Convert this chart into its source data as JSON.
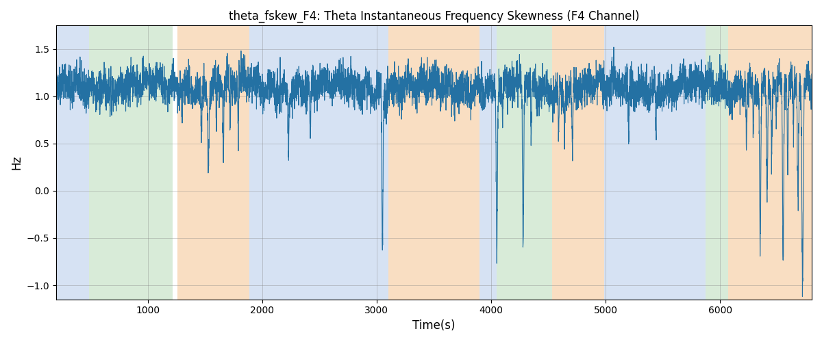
{
  "title": "theta_fskew_F4: Theta Instantaneous Frequency Skewness (F4 Channel)",
  "xlabel": "Time(s)",
  "ylabel": "Hz",
  "xlim": [
    200,
    6800
  ],
  "ylim": [
    -1.15,
    1.75
  ],
  "line_color": "#2471a3",
  "line_width": 0.8,
  "background_regions": [
    {
      "start": 200,
      "end": 490,
      "color": "#aec6e8",
      "alpha": 0.5
    },
    {
      "start": 490,
      "end": 1220,
      "color": "#b2d8b2",
      "alpha": 0.5
    },
    {
      "start": 1220,
      "end": 1260,
      "color": "#ffffff",
      "alpha": 0.0
    },
    {
      "start": 1260,
      "end": 1890,
      "color": "#f5c89a",
      "alpha": 0.6
    },
    {
      "start": 1890,
      "end": 2130,
      "color": "#aec6e8",
      "alpha": 0.5
    },
    {
      "start": 2130,
      "end": 3100,
      "color": "#aec6e8",
      "alpha": 0.5
    },
    {
      "start": 3100,
      "end": 3900,
      "color": "#f5c89a",
      "alpha": 0.6
    },
    {
      "start": 3900,
      "end": 4050,
      "color": "#aec6e8",
      "alpha": 0.5
    },
    {
      "start": 4050,
      "end": 4530,
      "color": "#b2d8b2",
      "alpha": 0.5
    },
    {
      "start": 4530,
      "end": 4990,
      "color": "#f5c89a",
      "alpha": 0.6
    },
    {
      "start": 4990,
      "end": 5870,
      "color": "#aec6e8",
      "alpha": 0.5
    },
    {
      "start": 5870,
      "end": 6070,
      "color": "#b2d8b2",
      "alpha": 0.5
    },
    {
      "start": 6070,
      "end": 6800,
      "color": "#f5c89a",
      "alpha": 0.6
    }
  ],
  "seed": 42,
  "n_points": 6600,
  "t_start": 200,
  "t_end": 6800,
  "yticks": [
    -1.0,
    -0.5,
    0.0,
    0.5,
    1.0,
    1.5
  ],
  "xticks": [
    1000,
    2000,
    3000,
    4000,
    5000,
    6000
  ]
}
